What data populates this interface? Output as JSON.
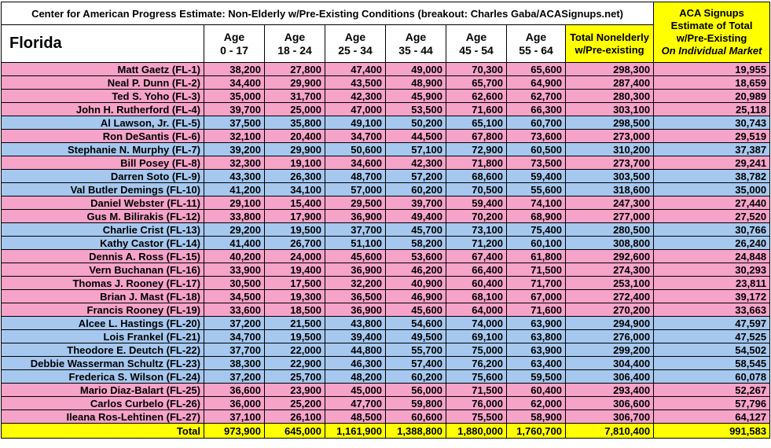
{
  "header": {
    "title": "Center for American Progress Estimate: Non-Elderly w/Pre-Existing Conditions (breakout: Charles Gaba/ACASignups.net)",
    "aca_title": "ACA Signups Estimate of Total w/Pre-Existing",
    "aca_subtitle": "On Individual Market",
    "highlight_color": "#ffff00"
  },
  "table": {
    "columns": [
      "Florida",
      "Age\n0 - 17",
      "Age\n18 - 24",
      "Age\n25 - 34",
      "Age\n35 - 44",
      "Age\n45 - 54",
      "Age\n55 - 64",
      "Total Nonelderly\nw/Pre-existing"
    ],
    "rows": [
      {
        "color": "#f5a3c8",
        "cells": [
          "Matt Gaetz (FL-1)",
          "38,200",
          "27,800",
          "47,400",
          "49,000",
          "70,300",
          "65,600",
          "298,300",
          "19,955"
        ]
      },
      {
        "color": "#f5a3c8",
        "cells": [
          "Neal P. Dunn (FL-2)",
          "34,400",
          "29,900",
          "43,500",
          "48,900",
          "65,700",
          "64,900",
          "287,400",
          "18,659"
        ]
      },
      {
        "color": "#f5a3c8",
        "cells": [
          "Ted S. Yoho (FL-3)",
          "35,000",
          "31,700",
          "42,300",
          "45,900",
          "62,600",
          "62,700",
          "280,300",
          "20,989"
        ]
      },
      {
        "color": "#f5a3c8",
        "cells": [
          "John H. Rutherford (FL-4)",
          "39,700",
          "25,000",
          "47,000",
          "53,500",
          "71,600",
          "66,300",
          "303,100",
          "25,118"
        ]
      },
      {
        "color": "#a6c8ef",
        "cells": [
          "Al Lawson, Jr. (FL-5)",
          "37,500",
          "35,800",
          "49,100",
          "50,200",
          "65,100",
          "60,700",
          "298,500",
          "30,743"
        ]
      },
      {
        "color": "#f5a3c8",
        "cells": [
          "Ron DeSantis (FL-6)",
          "32,100",
          "20,400",
          "34,700",
          "44,500",
          "67,800",
          "73,600",
          "273,000",
          "29,519"
        ]
      },
      {
        "color": "#a6c8ef",
        "cells": [
          "Stephanie N. Murphy (FL-7)",
          "39,200",
          "29,900",
          "50,600",
          "57,100",
          "72,900",
          "60,500",
          "310,200",
          "37,387"
        ]
      },
      {
        "color": "#f5a3c8",
        "cells": [
          "Bill Posey (FL-8)",
          "32,300",
          "19,100",
          "34,600",
          "42,300",
          "71,800",
          "73,500",
          "273,700",
          "29,241"
        ]
      },
      {
        "color": "#a6c8ef",
        "cells": [
          "Darren Soto (FL-9)",
          "43,300",
          "26,300",
          "48,700",
          "57,200",
          "68,600",
          "59,400",
          "303,500",
          "38,782"
        ]
      },
      {
        "color": "#a6c8ef",
        "cells": [
          "Val Butler Demings (FL-10)",
          "41,200",
          "34,100",
          "57,000",
          "60,200",
          "70,500",
          "55,600",
          "318,600",
          "35,000"
        ]
      },
      {
        "color": "#f5a3c8",
        "cells": [
          "Daniel Webster (FL-11)",
          "29,100",
          "15,400",
          "29,500",
          "39,700",
          "59,400",
          "74,100",
          "247,300",
          "27,440"
        ]
      },
      {
        "color": "#f5a3c8",
        "cells": [
          "Gus M. Bilirakis (FL-12)",
          "33,800",
          "17,900",
          "36,900",
          "49,400",
          "70,200",
          "68,900",
          "277,000",
          "27,520"
        ]
      },
      {
        "color": "#a6c8ef",
        "cells": [
          "Charlie Crist (FL-13)",
          "29,200",
          "19,500",
          "37,700",
          "45,700",
          "73,100",
          "75,400",
          "280,500",
          "30,766"
        ]
      },
      {
        "color": "#a6c8ef",
        "cells": [
          "Kathy Castor (FL-14)",
          "41,400",
          "26,700",
          "51,100",
          "58,200",
          "71,200",
          "60,100",
          "308,800",
          "26,240"
        ]
      },
      {
        "color": "#f5a3c8",
        "cells": [
          "Dennis A. Ross (FL-15)",
          "40,200",
          "24,000",
          "45,600",
          "53,600",
          "67,400",
          "61,800",
          "292,600",
          "24,848"
        ]
      },
      {
        "color": "#f5a3c8",
        "cells": [
          "Vern Buchanan (FL-16)",
          "33,900",
          "19,400",
          "36,900",
          "46,200",
          "66,400",
          "71,500",
          "274,300",
          "30,293"
        ]
      },
      {
        "color": "#f5a3c8",
        "cells": [
          "Thomas J. Rooney (FL-17)",
          "30,500",
          "17,500",
          "32,200",
          "40,900",
          "60,400",
          "71,700",
          "253,100",
          "23,811"
        ]
      },
      {
        "color": "#f5a3c8",
        "cells": [
          "Brian J. Mast (FL-18)",
          "34,500",
          "19,300",
          "36,500",
          "46,900",
          "68,100",
          "67,000",
          "272,400",
          "39,172"
        ]
      },
      {
        "color": "#f5a3c8",
        "cells": [
          "Francis Rooney (FL-19)",
          "33,600",
          "18,500",
          "36,900",
          "45,600",
          "64,000",
          "71,600",
          "270,200",
          "33,663"
        ]
      },
      {
        "color": "#a6c8ef",
        "cells": [
          "Alcee L. Hastings (FL-20)",
          "37,200",
          "21,500",
          "43,800",
          "54,600",
          "74,000",
          "63,900",
          "294,900",
          "47,597"
        ]
      },
      {
        "color": "#a6c8ef",
        "cells": [
          "Lois Frankel (FL-21)",
          "34,700",
          "19,500",
          "39,400",
          "49,500",
          "69,100",
          "63,800",
          "276,000",
          "47,525"
        ]
      },
      {
        "color": "#a6c8ef",
        "cells": [
          "Theodore E. Deutch (FL-22)",
          "37,700",
          "22,000",
          "44,800",
          "55,700",
          "75,000",
          "63,900",
          "299,200",
          "54,502"
        ]
      },
      {
        "color": "#a6c8ef",
        "cells": [
          "Debbie Wasserman Schultz (FL-23)",
          "38,300",
          "22,900",
          "46,300",
          "57,400",
          "76,200",
          "63,400",
          "304,400",
          "58,545"
        ]
      },
      {
        "color": "#a6c8ef",
        "cells": [
          "Frederica S. Wilson (FL-24)",
          "37,200",
          "25,700",
          "48,200",
          "60,200",
          "75,600",
          "59,500",
          "306,400",
          "60,078"
        ]
      },
      {
        "color": "#f5a3c8",
        "cells": [
          "Mario Diaz-Balart (FL-25)",
          "36,600",
          "23,900",
          "45,000",
          "56,000",
          "71,500",
          "60,400",
          "293,400",
          "52,267"
        ]
      },
      {
        "color": "#f5a3c8",
        "cells": [
          "Carlos Curbelo (FL-26)",
          "36,000",
          "25,200",
          "47,700",
          "59,800",
          "76,000",
          "62,000",
          "306,600",
          "57,796"
        ]
      },
      {
        "color": "#f5a3c8",
        "cells": [
          "Ileana Ros-Lehtinen (FL-27)",
          "37,100",
          "26,100",
          "48,500",
          "60,600",
          "75,500",
          "58,900",
          "306,700",
          "64,127"
        ]
      }
    ],
    "total": [
      "Total",
      "973,900",
      "645,000",
      "1,161,900",
      "1,388,800",
      "1,880,000",
      "1,760,700",
      "7,810,400",
      "991,583"
    ]
  }
}
